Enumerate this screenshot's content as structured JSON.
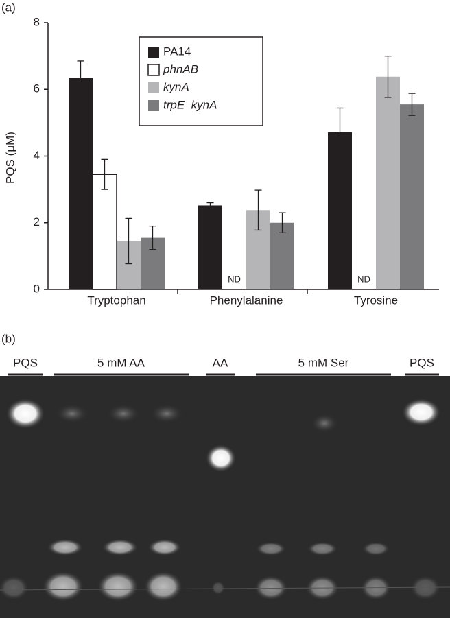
{
  "panel_labels": [
    "(a)",
    "(b)"
  ],
  "chart_data": {
    "type": "bar",
    "ylabel": "PQS (μM)",
    "categories": [
      "Tryptophan",
      "Phenylalanine",
      "Tyrosine"
    ],
    "series": [
      {
        "name": "PA14",
        "color": "#231f20",
        "values": [
          6.35,
          2.52,
          4.72
        ],
        "errors": [
          0.5,
          0.08,
          0.72
        ]
      },
      {
        "name": "phnAB",
        "color": "#ffffff",
        "italic": true,
        "values": [
          3.45,
          null,
          null
        ],
        "errors": [
          0.45,
          null,
          null
        ],
        "value_labels": [
          null,
          "ND",
          "ND"
        ]
      },
      {
        "name": "kynA",
        "color": "#b5b5b7",
        "italic": true,
        "values": [
          1.45,
          2.38,
          6.38
        ],
        "errors": [
          0.68,
          0.6,
          0.62
        ]
      },
      {
        "name": "trpE  kynA",
        "color": "#7b7b7d",
        "italic": true,
        "values": [
          1.55,
          2.0,
          5.55
        ],
        "errors": [
          0.35,
          0.3,
          0.33
        ]
      }
    ],
    "ylim": [
      0,
      8
    ],
    "yticks": [
      0,
      2,
      4,
      6,
      8
    ]
  },
  "tlc": {
    "lane_labels": [
      "PQS",
      "5 mM AA",
      "AA",
      "5 mM Ser",
      "PQS"
    ]
  }
}
